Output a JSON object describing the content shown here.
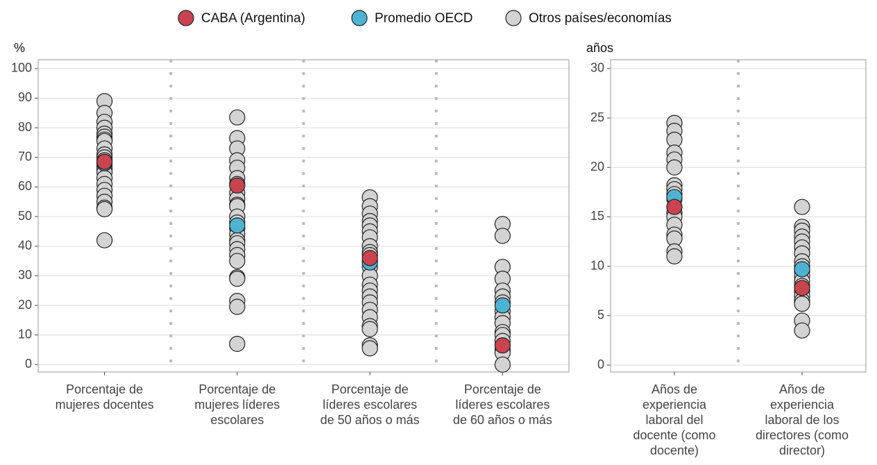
{
  "chart_data": [
    {
      "type": "strip",
      "y_label": "%",
      "categories": [
        [
          "Porcentaje de",
          "mujeres docentes"
        ],
        [
          "Porcentaje de",
          "mujeres líderes",
          "escolares"
        ],
        [
          "Porcentaje de",
          "líderes escolares",
          "de 50 años o más"
        ],
        [
          "Porcentaje de",
          "líderes escolares",
          "de 60 años o más"
        ]
      ],
      "ylim": [
        -2.5,
        103
      ],
      "yticks": [
        0,
        10,
        20,
        30,
        40,
        50,
        60,
        70,
        80,
        90,
        100
      ],
      "grid": true,
      "series": [
        {
          "name": "CABA (Argentina)",
          "color": "#c9444f",
          "values": [
            68.5,
            60.5,
            36,
            6.5
          ]
        },
        {
          "name": "Promedio OECD",
          "color": "#4eb3d3",
          "values": [
            68,
            47,
            34.5,
            20
          ]
        },
        {
          "name": "Otros países/economías",
          "color": "#d3d3d3",
          "values": [
            [
              89,
              85,
              82,
              80,
              78,
              77,
              76,
              75.5,
              73,
              71,
              70,
              69,
              67,
              66,
              65,
              63,
              61,
              59,
              57,
              55,
              53,
              52.5,
              42
            ],
            [
              83.5,
              76.5,
              73,
              69,
              66.5,
              63,
              61,
              58,
              56,
              54,
              53.5,
              50,
              48,
              46,
              44,
              42,
              41,
              39,
              37,
              35,
              29.5,
              29,
              21.5,
              19.5,
              7
            ],
            [
              56.5,
              53.5,
              51,
              48.5,
              47,
              45,
              43,
              40,
              38,
              37,
              35,
              33,
              30,
              27,
              25,
              23,
              21,
              18.5,
              16,
              13,
              12,
              6.5,
              5.5
            ],
            [
              47.5,
              43.5,
              33,
              29,
              25,
              23,
              21,
              18,
              16,
              14,
              11,
              10,
              8,
              5,
              4,
              0
            ]
          ]
        }
      ]
    },
    {
      "type": "strip",
      "y_label": "años",
      "categories": [
        [
          "Años de",
          "experiencia",
          "laboral del",
          "docente (como",
          "docente)"
        ],
        [
          "Años de",
          "experiencia",
          "laboral de los",
          "directores (como",
          "director)"
        ]
      ],
      "ylim": [
        -0.7,
        30.9
      ],
      "yticks": [
        0,
        5,
        10,
        15,
        20,
        25,
        30
      ],
      "grid": true,
      "series": [
        {
          "color": "#c9444f",
          "values": [
            16,
            7.8
          ]
        },
        {
          "color": "#4eb3d3",
          "values": [
            17,
            9.7
          ]
        },
        {
          "color": "#d3d3d3",
          "values": [
            [
              24.5,
              23.7,
              22.8,
              21.5,
              20.8,
              20,
              18.2,
              17.8,
              17.3,
              16.8,
              16,
              15.4,
              15,
              14.2,
              13.2,
              12.8,
              11.5,
              11
            ],
            [
              16,
              14,
              13.6,
              13,
              12.5,
              11.9,
              11.3,
              10.5,
              10,
              9.5,
              9,
              8.5,
              8,
              7.5,
              7,
              6.5,
              6.2,
              4.5,
              3.5
            ]
          ]
        }
      ]
    }
  ]
}
